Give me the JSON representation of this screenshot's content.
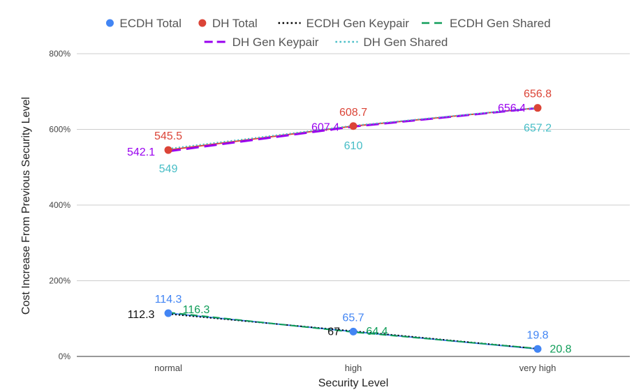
{
  "chart_data": {
    "type": "line",
    "title": "",
    "xlabel": "Security Level",
    "ylabel": "Cost Increase From Previous Security Level",
    "categories": [
      "normal",
      "high",
      "very high"
    ],
    "ylim": [
      0,
      800
    ],
    "yticks": [
      0,
      200,
      400,
      600,
      800
    ],
    "ytick_labels": [
      "0%",
      "200%",
      "400%",
      "600%",
      "800%"
    ],
    "grid": true,
    "legend_position": "top",
    "series": [
      {
        "name": "ECDH Total",
        "values": [
          114.3,
          65.7,
          19.8
        ],
        "labels": [
          "114.3",
          "65.7",
          "19.8"
        ],
        "color": "#4285f4",
        "style": "solid",
        "marker": true
      },
      {
        "name": "DH Total",
        "values": [
          545.5,
          608.7,
          656.8
        ],
        "labels": [
          "545.5",
          "608.7",
          "656.8"
        ],
        "color": "#db4437",
        "style": "solid",
        "marker": true
      },
      {
        "name": "ECDH Gen Keypair",
        "values": [
          112.3,
          67,
          20.5
        ],
        "labels": [
          "112.3",
          "67",
          ""
        ],
        "color": "#000000",
        "style": "dotted",
        "marker": false
      },
      {
        "name": "ECDH Gen Shared",
        "values": [
          116.3,
          64.4,
          20.8
        ],
        "labels": [
          "116.3",
          "64.4",
          "20.8"
        ],
        "color": "#0f9d58",
        "style": "dashed",
        "marker": false
      },
      {
        "name": "DH Gen Keypair",
        "values": [
          542.1,
          607.4,
          656.4
        ],
        "labels": [
          "542.1",
          "607.4",
          "656.4"
        ],
        "color": "#9900ef",
        "style": "longdash",
        "marker": false
      },
      {
        "name": "DH Gen Shared",
        "values": [
          549,
          610,
          657.2
        ],
        "labels": [
          "549",
          "610",
          "657.2"
        ],
        "color": "#46bdc6",
        "style": "dotted",
        "marker": false
      }
    ]
  }
}
